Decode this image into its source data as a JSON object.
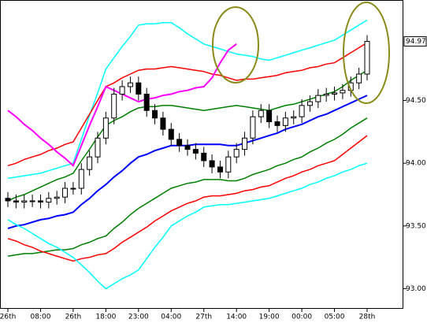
{
  "chart_data": {
    "type": "candlestick",
    "categories": [
      "26th",
      null,
      null,
      null,
      "08:00",
      null,
      null,
      null,
      "26th",
      null,
      null,
      null,
      "18:00",
      null,
      null,
      null,
      "23:00",
      null,
      null,
      null,
      "04:00",
      null,
      null,
      null,
      "27th",
      null,
      null,
      null,
      "14:00",
      null,
      null,
      null,
      "19:00",
      null,
      null,
      null,
      "00:00",
      null,
      null,
      null,
      "05:00",
      null,
      null,
      null,
      "28th"
    ],
    "open": [
      93.72,
      93.7,
      93.69,
      93.7,
      93.7,
      93.69,
      93.72,
      93.73,
      93.8,
      93.8,
      93.95,
      94.05,
      94.2,
      94.36,
      94.55,
      94.61,
      94.64,
      94.55,
      94.42,
      94.36,
      94.27,
      94.19,
      94.14,
      94.11,
      94.08,
      94.02,
      93.97,
      93.93,
      94.05,
      94.11,
      94.2,
      94.37,
      94.42,
      94.33,
      94.3,
      94.36,
      94.37,
      94.46,
      94.49,
      94.54,
      94.55,
      94.56,
      94.58,
      94.64,
      94.71
    ],
    "high": [
      93.77,
      93.75,
      93.75,
      93.75,
      93.75,
      93.77,
      93.78,
      93.85,
      93.85,
      94.0,
      94.1,
      94.25,
      94.41,
      94.6,
      94.66,
      94.69,
      94.69,
      94.6,
      94.47,
      94.41,
      94.32,
      94.24,
      94.19,
      94.16,
      94.13,
      94.07,
      94.02,
      94.1,
      94.16,
      94.25,
      94.42,
      94.47,
      94.47,
      94.38,
      94.41,
      94.42,
      94.51,
      94.54,
      94.59,
      94.6,
      94.61,
      94.63,
      94.69,
      94.76,
      95.02
    ],
    "low": [
      93.65,
      93.64,
      93.64,
      93.65,
      93.64,
      93.64,
      93.67,
      93.68,
      93.75,
      93.75,
      93.9,
      94.0,
      94.15,
      94.31,
      94.5,
      94.56,
      94.5,
      94.37,
      94.31,
      94.22,
      94.14,
      94.09,
      94.06,
      94.03,
      93.97,
      93.92,
      93.88,
      93.88,
      94.0,
      94.06,
      94.15,
      94.32,
      94.28,
      94.25,
      94.25,
      94.31,
      94.32,
      94.41,
      94.44,
      94.49,
      94.5,
      94.51,
      94.53,
      94.59,
      94.66
    ],
    "close": [
      93.7,
      93.69,
      93.7,
      93.7,
      93.69,
      93.72,
      93.73,
      93.8,
      93.8,
      93.95,
      94.05,
      94.2,
      94.36,
      94.55,
      94.61,
      94.64,
      94.55,
      94.42,
      94.36,
      94.27,
      94.19,
      94.14,
      94.11,
      94.08,
      94.02,
      93.97,
      93.93,
      94.05,
      94.11,
      94.2,
      94.37,
      94.42,
      94.33,
      94.3,
      94.36,
      94.37,
      94.46,
      94.49,
      94.54,
      94.55,
      94.56,
      94.58,
      94.64,
      94.71,
      94.97
    ],
    "series": [
      {
        "color": "#00ffff",
        "values": [
          93.88,
          93.89,
          93.9,
          93.91,
          93.92,
          93.94,
          93.96,
          93.98,
          94.0,
          94.19,
          94.38,
          94.56,
          94.75,
          94.84,
          94.93,
          95.01,
          95.1,
          95.11,
          95.11,
          95.12,
          95.12,
          95.08,
          95.03,
          94.99,
          94.95,
          94.93,
          94.91,
          94.89,
          94.87,
          94.86,
          94.85,
          94.83,
          94.82,
          94.84,
          94.86,
          94.88,
          94.9,
          94.92,
          94.94,
          94.96,
          94.98,
          95.02,
          95.06,
          95.1,
          95.14
        ]
      },
      {
        "color": "#ff0000",
        "values": [
          93.98,
          94.0,
          94.03,
          94.05,
          94.07,
          94.1,
          94.12,
          94.15,
          94.17,
          94.28,
          94.39,
          94.5,
          94.61,
          94.64,
          94.68,
          94.71,
          94.74,
          94.75,
          94.75,
          94.76,
          94.77,
          94.76,
          94.75,
          94.74,
          94.73,
          94.71,
          94.7,
          94.68,
          94.66,
          94.67,
          94.67,
          94.68,
          94.69,
          94.7,
          94.72,
          94.73,
          94.74,
          94.76,
          94.77,
          94.79,
          94.8,
          94.84,
          94.88,
          94.92,
          94.96
        ]
      },
      {
        "color": "#008000",
        "values": [
          93.7,
          93.73,
          93.75,
          93.78,
          93.81,
          93.84,
          93.87,
          93.89,
          93.92,
          94.02,
          94.11,
          94.21,
          94.3,
          94.34,
          94.37,
          94.41,
          94.44,
          94.45,
          94.45,
          94.46,
          94.46,
          94.45,
          94.44,
          94.43,
          94.42,
          94.43,
          94.44,
          94.45,
          94.46,
          94.45,
          94.44,
          94.43,
          94.42,
          94.44,
          94.46,
          94.47,
          94.49,
          94.51,
          94.53,
          94.55,
          94.57,
          94.61,
          94.66,
          94.7,
          94.74
        ]
      },
      {
        "color": "#0000ff",
        "values": [
          93.48,
          93.5,
          93.51,
          93.53,
          93.55,
          93.56,
          93.58,
          93.59,
          93.61,
          93.67,
          93.72,
          93.78,
          93.83,
          93.89,
          93.94,
          94.0,
          94.05,
          94.07,
          94.1,
          94.12,
          94.14,
          94.14,
          94.14,
          94.15,
          94.15,
          94.15,
          94.15,
          94.14,
          94.14,
          94.16,
          94.18,
          94.2,
          94.22,
          94.24,
          94.27,
          94.29,
          94.31,
          94.34,
          94.37,
          94.39,
          94.42,
          94.45,
          94.48,
          94.51,
          94.54
        ]
      },
      {
        "color": "#008000",
        "values": [
          93.26,
          93.27,
          93.28,
          93.28,
          93.29,
          93.3,
          93.31,
          93.31,
          93.32,
          93.35,
          93.37,
          93.4,
          93.42,
          93.48,
          93.53,
          93.59,
          93.64,
          93.68,
          93.72,
          93.76,
          93.8,
          93.82,
          93.84,
          93.85,
          93.87,
          93.87,
          93.87,
          93.86,
          93.86,
          93.88,
          93.91,
          93.93,
          93.95,
          93.98,
          94.0,
          94.03,
          94.05,
          94.09,
          94.12,
          94.16,
          94.19,
          94.23,
          94.28,
          94.32,
          94.36
        ]
      },
      {
        "color": "#ff0000",
        "values": [
          93.4,
          93.38,
          93.35,
          93.33,
          93.3,
          93.28,
          93.26,
          93.24,
          93.22,
          93.24,
          93.25,
          93.27,
          93.28,
          93.32,
          93.37,
          93.41,
          93.45,
          93.49,
          93.54,
          93.58,
          93.62,
          93.65,
          93.68,
          93.7,
          93.73,
          93.74,
          93.74,
          93.75,
          93.76,
          93.78,
          93.79,
          93.81,
          93.82,
          93.85,
          93.88,
          93.9,
          93.93,
          93.95,
          93.98,
          94.0,
          94.02,
          94.07,
          94.12,
          94.17,
          94.22
        ]
      },
      {
        "color": "#00ffff",
        "values": [
          93.55,
          93.51,
          93.48,
          93.44,
          93.4,
          93.36,
          93.33,
          93.29,
          93.25,
          93.19,
          93.13,
          93.06,
          93.0,
          93.04,
          93.08,
          93.11,
          93.15,
          93.24,
          93.33,
          93.41,
          93.5,
          93.54,
          93.58,
          93.61,
          93.65,
          93.66,
          93.67,
          93.67,
          93.68,
          93.69,
          93.7,
          93.71,
          93.72,
          93.74,
          93.76,
          93.78,
          93.8,
          93.83,
          93.85,
          93.88,
          93.9,
          93.93,
          93.95,
          93.98,
          94.0
        ]
      },
      {
        "color": "#ff00ff",
        "values": [
          94.42,
          94.37,
          94.31,
          94.26,
          94.2,
          94.15,
          94.09,
          94.04,
          93.98,
          94.14,
          94.3,
          94.45,
          94.61,
          94.58,
          94.55,
          94.52,
          94.49,
          94.51,
          94.52,
          94.54,
          94.55,
          94.57,
          94.58,
          94.6,
          94.61,
          94.68,
          94.8,
          94.9,
          94.95,
          null,
          null,
          null,
          null,
          null,
          null,
          null,
          null,
          null,
          null,
          null,
          null,
          null,
          null,
          null,
          null
        ]
      }
    ],
    "ylim": [
      92.84,
      95.3
    ],
    "yticks": [
      {
        "value": 93,
        "label": "93.00"
      },
      {
        "value": 93.5,
        "label": "93.50"
      },
      {
        "value": 94,
        "label": "94.00"
      },
      {
        "value": 94.5,
        "label": "94.50"
      }
    ],
    "last_price": {
      "value": 94.97,
      "label": "94.97"
    },
    "grid": false
  }
}
